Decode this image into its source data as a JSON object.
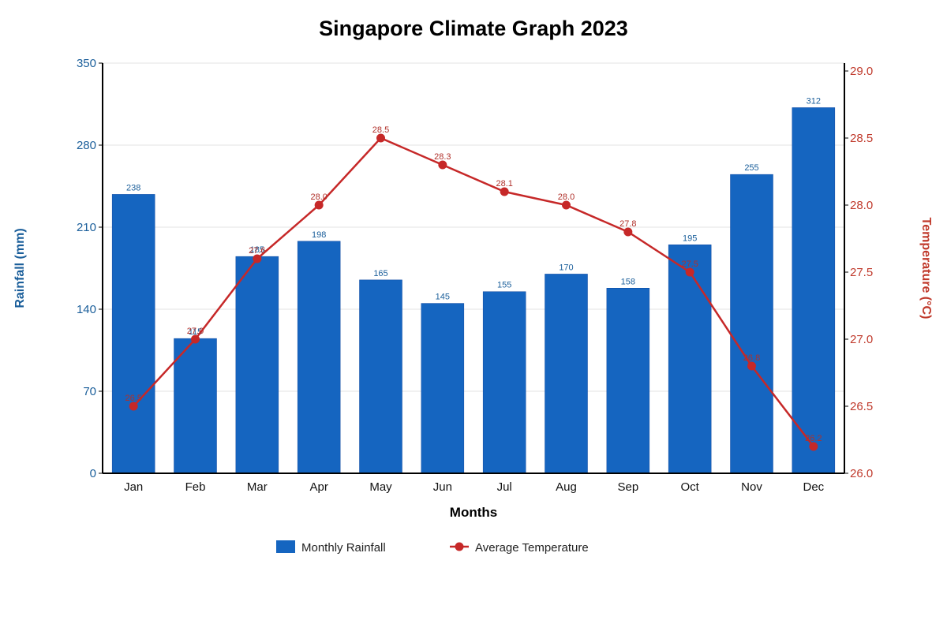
{
  "chart_data": {
    "type": "bar",
    "title": "Singapore Climate Graph 2023",
    "xlabel": "Months",
    "ylabel": "Rainfall (mm)",
    "y2label": "Temperature (°C)",
    "categories": [
      "Jan",
      "Feb",
      "Mar",
      "Apr",
      "May",
      "Jun",
      "Jul",
      "Aug",
      "Sep",
      "Oct",
      "Nov",
      "Dec"
    ],
    "ylim": [
      0,
      350
    ],
    "yticks": [
      "0",
      "70",
      "140",
      "210",
      "280",
      "350"
    ],
    "y2lim": [
      26.0,
      29.0
    ],
    "y2ticks": [
      "26.0",
      "26.5",
      "27.0",
      "27.5",
      "28.0",
      "28.5",
      "29.0"
    ],
    "grid": true,
    "legend_position": "bottom-center",
    "series": [
      {
        "name": "Monthly Rainfall",
        "type": "bar",
        "axis": "left",
        "color": "#1565c0",
        "values": [
          238,
          115,
          185,
          198,
          165,
          145,
          155,
          170,
          158,
          195,
          255,
          312
        ],
        "labels": [
          "238",
          "115",
          "185",
          "198",
          "165",
          "145",
          "155",
          "170",
          "158",
          "195",
          "255",
          "312"
        ]
      },
      {
        "name": "Average Temperature",
        "type": "line",
        "axis": "right",
        "color": "#c62828",
        "values": [
          26.5,
          27.0,
          27.6,
          28.0,
          28.5,
          28.3,
          28.1,
          28.0,
          27.8,
          27.5,
          26.8,
          26.2
        ],
        "labels": [
          "26.5",
          "27.0",
          "27.6",
          "28.0",
          "28.5",
          "28.3",
          "28.1",
          "28.0",
          "27.8",
          "27.5",
          "26.8",
          "26.2"
        ]
      }
    ],
    "colors": {
      "left_axis_text": "#1a5e9a",
      "right_axis_text": "#c0392b",
      "grid": "#e3e3e3",
      "axis": "#000000",
      "temp_label": "#b0302a",
      "bar_label": "#1a5e9a"
    }
  }
}
